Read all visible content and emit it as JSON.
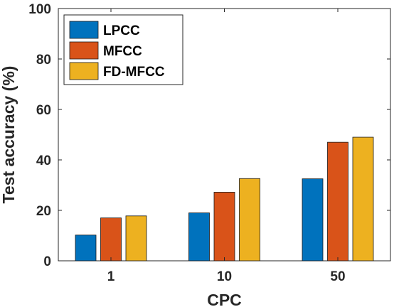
{
  "chart_data": {
    "type": "bar",
    "categories": [
      "1",
      "10",
      "50"
    ],
    "series": [
      {
        "name": "LPCC",
        "color": "#0072BD",
        "values": [
          10.2,
          19.0,
          32.5
        ]
      },
      {
        "name": "MFCC",
        "color": "#D95319",
        "values": [
          17.0,
          27.2,
          47.0
        ]
      },
      {
        "name": "FD-MFCC",
        "color": "#EDB120",
        "values": [
          17.8,
          32.6,
          49.0
        ]
      }
    ],
    "xlabel": "CPC",
    "ylabel": "Test accuracy (%)",
    "ylim": [
      0,
      100
    ],
    "yticks": [
      "0",
      "20",
      "40",
      "60",
      "80",
      "100"
    ],
    "grid": false,
    "legend_position": "top-left"
  }
}
